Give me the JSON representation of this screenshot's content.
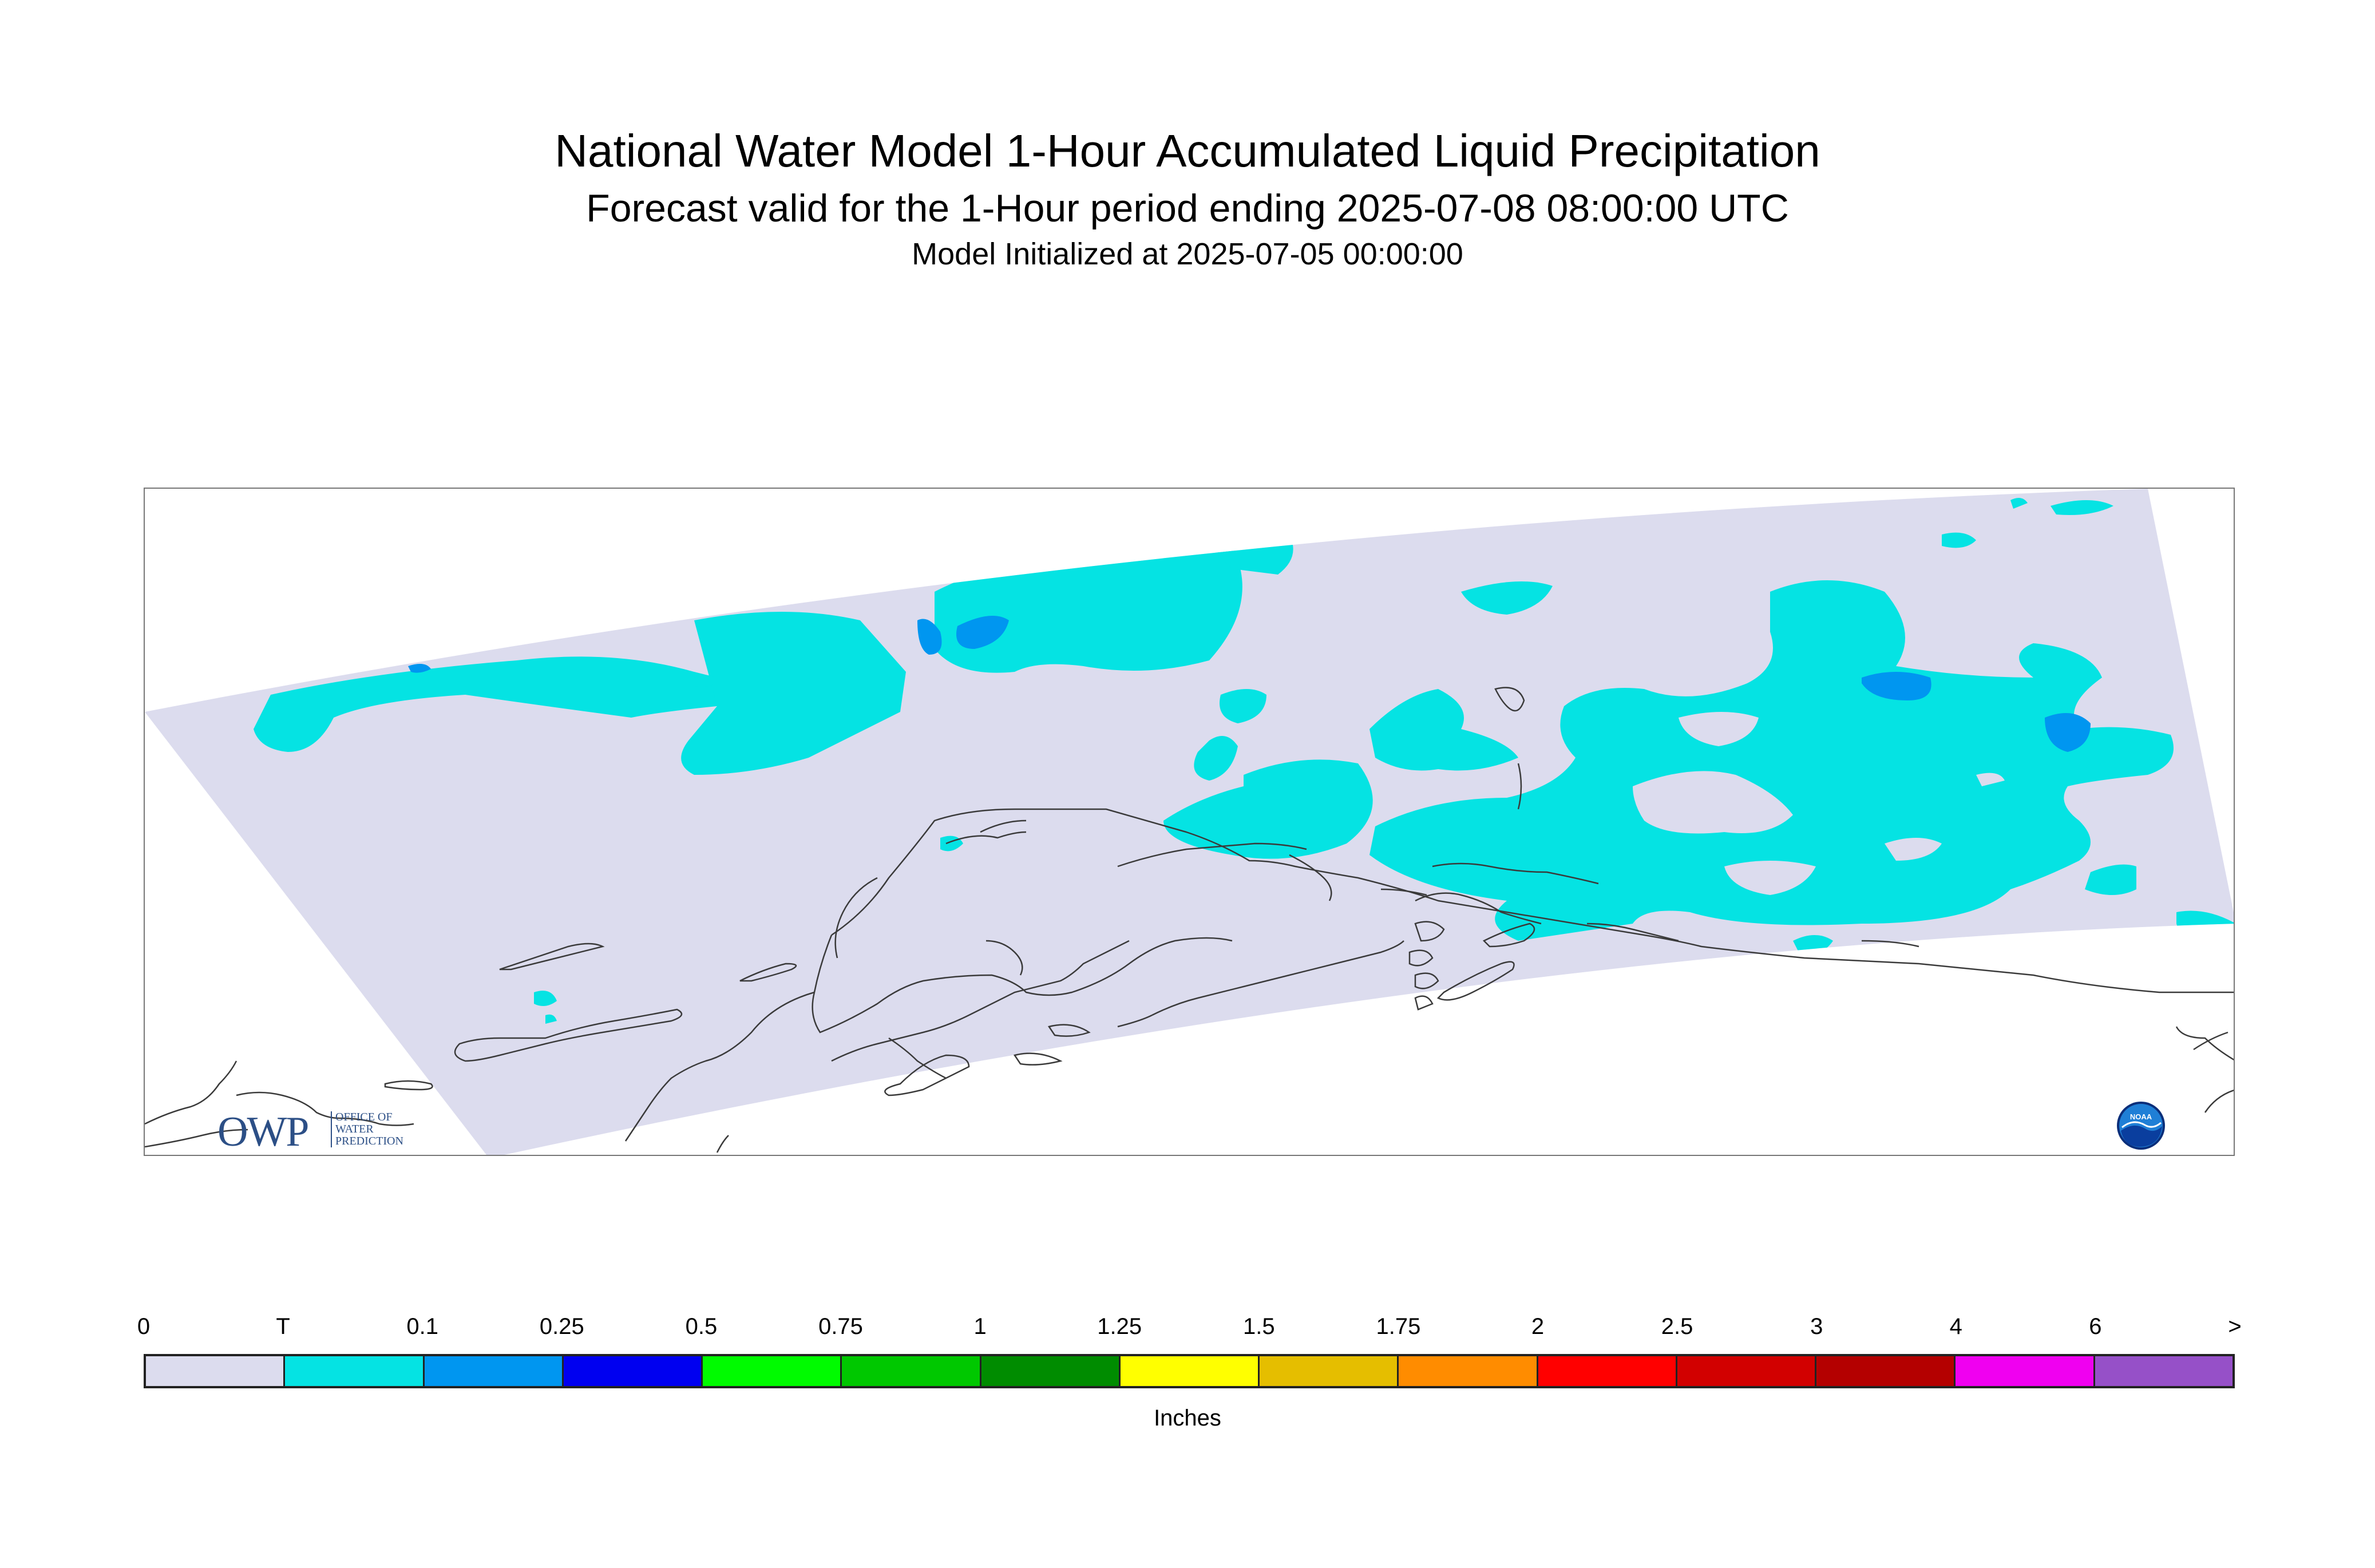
{
  "title": {
    "main": "National Water Model 1-Hour Accumulated Liquid Precipitation",
    "subtitle": "Forecast valid for the 1-Hour period ending 2025-07-08 08:00:00 UTC",
    "initialized": "Model Initialized at 2025-07-05 00:00:00"
  },
  "map": {
    "region": "Alaska",
    "background_color": "#dcdcee",
    "precip_colors": {
      "trace": "#05e3e3",
      "light": "#0096f0"
    }
  },
  "logos": {
    "owp": {
      "abbrev": "OWP",
      "line1": "OFFICE OF",
      "line2": "WATER",
      "line3": "PREDICTION"
    },
    "noaa": {
      "text": "NOAA",
      "icon": "noaa-logo-icon"
    }
  },
  "legend": {
    "ticks": [
      "0",
      "T",
      "0.1",
      "0.25",
      "0.5",
      "0.75",
      "1",
      "1.25",
      "1.5",
      "1.75",
      "2",
      "2.5",
      "3",
      "4",
      "6",
      ">"
    ],
    "colors": [
      "#dcdcee",
      "#05e3e3",
      "#0096f0",
      "#0000f0",
      "#00fb00",
      "#00c800",
      "#008c00",
      "#ffff00",
      "#e5be00",
      "#ff8c00",
      "#ff0000",
      "#d20000",
      "#b40000",
      "#f000f0",
      "#9650c8"
    ],
    "units": "Inches"
  }
}
